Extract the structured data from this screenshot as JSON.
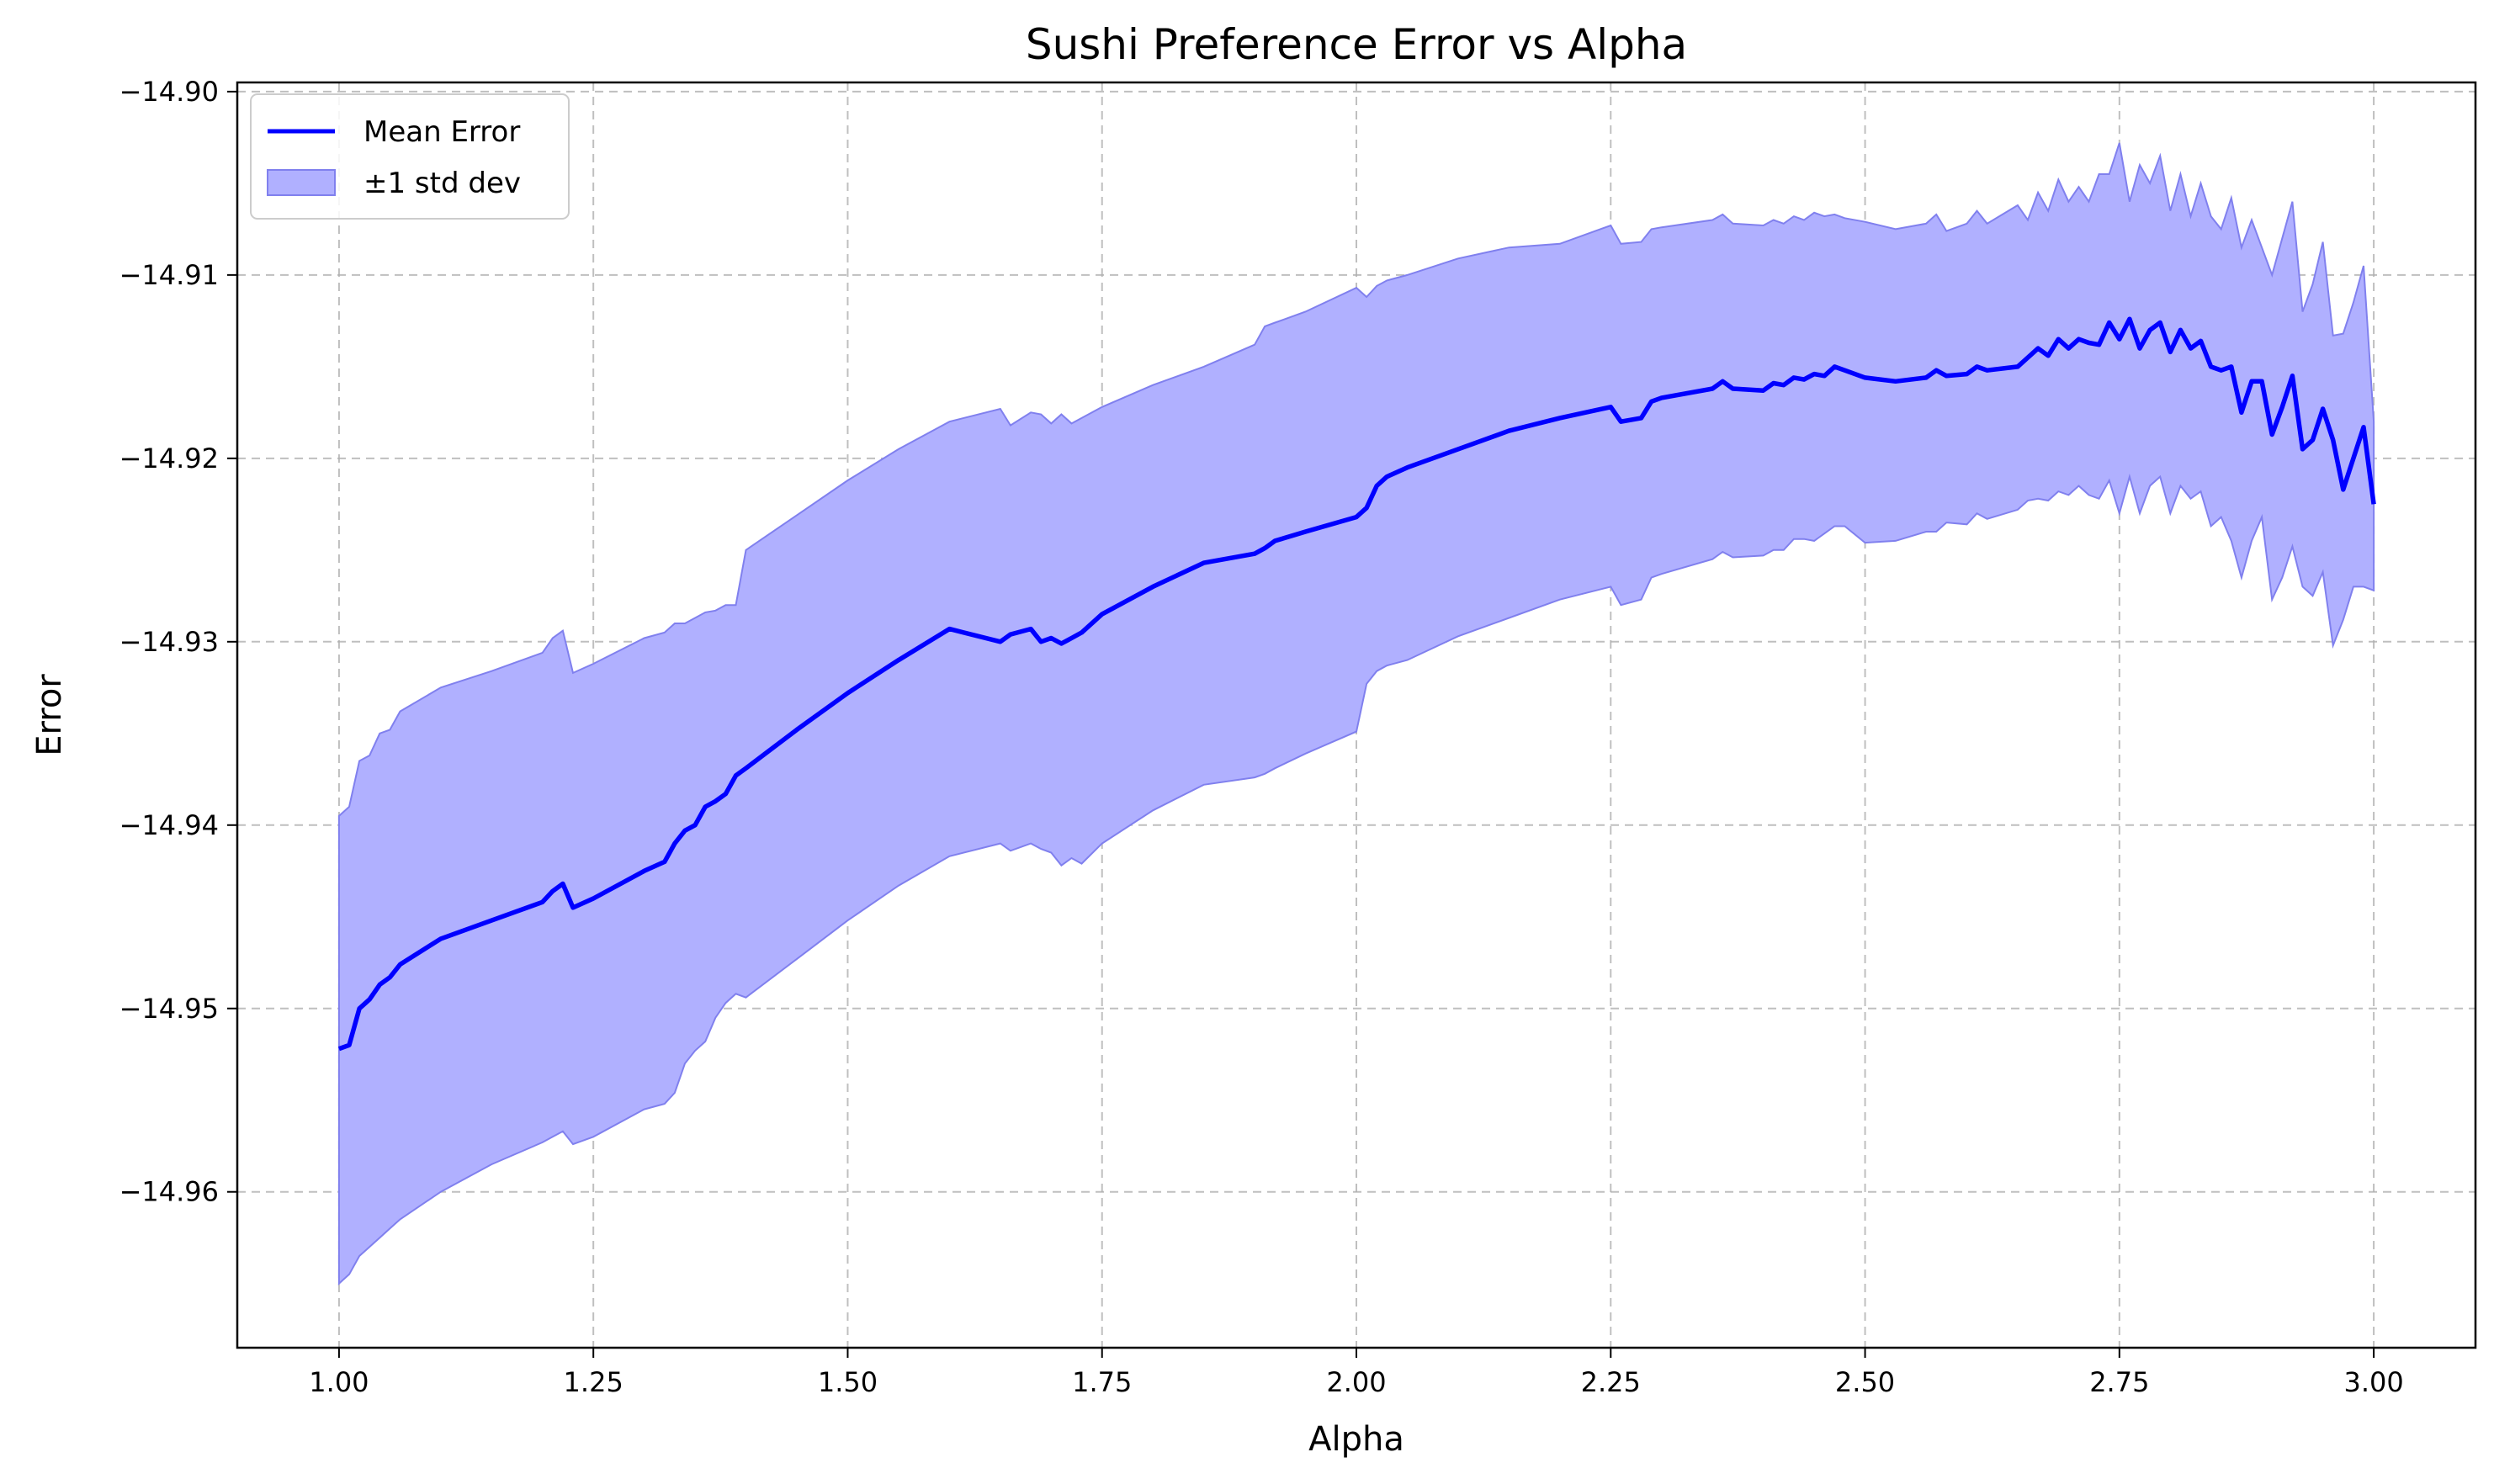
{
  "chart_data": {
    "type": "line",
    "title": "Sushi Preference Error vs Alpha",
    "xlabel": "Alpha",
    "ylabel": "Error",
    "xlim": [
      0.9,
      3.1
    ],
    "ylim": [
      -14.9685,
      -14.8995
    ],
    "xticks": [
      1.0,
      1.25,
      1.5,
      1.75,
      2.0,
      2.25,
      2.5,
      2.75,
      3.0
    ],
    "xtick_labels": [
      "1.00",
      "1.25",
      "1.50",
      "1.75",
      "2.00",
      "2.25",
      "2.50",
      "2.75",
      "3.00"
    ],
    "yticks": [
      -14.96,
      -14.95,
      -14.94,
      -14.93,
      -14.92,
      -14.91,
      -14.9
    ],
    "ytick_labels": [
      "−14.96",
      "−14.95",
      "−14.94",
      "−14.93",
      "−14.92",
      "−14.91",
      "−14.90"
    ],
    "grid": true,
    "legend_position": "top-left",
    "colors": {
      "line": "#0000ff",
      "band_fill": "#b0b0ff",
      "band_edge": "#8080ee"
    },
    "series": [
      {
        "name": "Mean Error",
        "kind": "line"
      },
      {
        "name": "±1 std dev",
        "kind": "band"
      }
    ],
    "x": [
      1.0,
      1.01,
      1.02,
      1.03,
      1.04,
      1.05,
      1.06,
      1.1,
      1.15,
      1.2,
      1.21,
      1.22,
      1.23,
      1.25,
      1.3,
      1.32,
      1.33,
      1.34,
      1.35,
      1.36,
      1.37,
      1.38,
      1.39,
      1.4,
      1.45,
      1.5,
      1.55,
      1.6,
      1.65,
      1.66,
      1.68,
      1.69,
      1.7,
      1.71,
      1.72,
      1.73,
      1.75,
      1.8,
      1.85,
      1.9,
      1.91,
      1.92,
      1.95,
      2.0,
      2.01,
      2.02,
      2.03,
      2.05,
      2.1,
      2.15,
      2.2,
      2.25,
      2.26,
      2.28,
      2.29,
      2.3,
      2.35,
      2.36,
      2.37,
      2.4,
      2.41,
      2.42,
      2.43,
      2.44,
      2.45,
      2.46,
      2.47,
      2.48,
      2.5,
      2.53,
      2.56,
      2.57,
      2.58,
      2.6,
      2.61,
      2.62,
      2.65,
      2.66,
      2.67,
      2.68,
      2.69,
      2.7,
      2.71,
      2.72,
      2.73,
      2.74,
      2.75,
      2.76,
      2.77,
      2.78,
      2.79,
      2.8,
      2.81,
      2.82,
      2.83,
      2.84,
      2.85,
      2.86,
      2.87,
      2.88,
      2.89,
      2.9,
      2.91,
      2.92,
      2.93,
      2.94,
      2.95,
      2.96,
      2.97,
      2.98,
      2.99,
      3.0
    ],
    "mean": [
      -14.9522,
      -14.952,
      -14.95,
      -14.9495,
      -14.9487,
      -14.9483,
      -14.9476,
      -14.9462,
      -14.9452,
      -14.9442,
      -14.9436,
      -14.9432,
      -14.9445,
      -14.944,
      -14.9425,
      -14.942,
      -14.941,
      -14.9403,
      -14.94,
      -14.939,
      -14.9387,
      -14.9383,
      -14.9373,
      -14.9369,
      -14.9348,
      -14.9328,
      -14.931,
      -14.9293,
      -14.93,
      -14.9296,
      -14.9293,
      -14.93,
      -14.9298,
      -14.9301,
      -14.9298,
      -14.9295,
      -14.9285,
      -14.927,
      -14.9257,
      -14.9252,
      -14.9249,
      -14.9245,
      -14.924,
      -14.9232,
      -14.9227,
      -14.9215,
      -14.921,
      -14.9205,
      -14.9195,
      -14.9185,
      -14.9178,
      -14.9172,
      -14.918,
      -14.9178,
      -14.9169,
      -14.9167,
      -14.9162,
      -14.9158,
      -14.9162,
      -14.9163,
      -14.9159,
      -14.916,
      -14.9156,
      -14.9157,
      -14.9154,
      -14.9155,
      -14.915,
      -14.9152,
      -14.9156,
      -14.9158,
      -14.9156,
      -14.9152,
      -14.9155,
      -14.9154,
      -14.915,
      -14.9152,
      -14.915,
      -14.9145,
      -14.914,
      -14.9144,
      -14.9135,
      -14.914,
      -14.9135,
      -14.9137,
      -14.9138,
      -14.9126,
      -14.9135,
      -14.9124,
      -14.914,
      -14.913,
      -14.9126,
      -14.9142,
      -14.913,
      -14.914,
      -14.9136,
      -14.915,
      -14.9152,
      -14.915,
      -14.9175,
      -14.9158,
      -14.9158,
      -14.9187,
      -14.9172,
      -14.9155,
      -14.9195,
      -14.919,
      -14.9173,
      -14.919,
      -14.9217,
      -14.92,
      -14.9183,
      -14.9225
    ],
    "upper": [
      -14.9395,
      -14.939,
      -14.9365,
      -14.9362,
      -14.935,
      -14.9348,
      -14.9338,
      -14.9325,
      -14.9316,
      -14.9306,
      -14.9298,
      -14.9294,
      -14.9317,
      -14.9312,
      -14.9298,
      -14.9295,
      -14.929,
      -14.929,
      -14.9287,
      -14.9284,
      -14.9283,
      -14.928,
      -14.928,
      -14.925,
      -14.9231,
      -14.9212,
      -14.9195,
      -14.918,
      -14.9173,
      -14.9182,
      -14.9175,
      -14.9176,
      -14.9181,
      -14.9176,
      -14.9181,
      -14.9178,
      -14.9172,
      -14.916,
      -14.915,
      -14.9138,
      -14.9128,
      -14.9126,
      -14.912,
      -14.9107,
      -14.9112,
      -14.9106,
      -14.9103,
      -14.91,
      -14.9091,
      -14.9085,
      -14.9083,
      -14.9073,
      -14.9083,
      -14.9082,
      -14.9075,
      -14.9074,
      -14.907,
      -14.9067,
      -14.9072,
      -14.9073,
      -14.907,
      -14.9072,
      -14.9068,
      -14.907,
      -14.9066,
      -14.9068,
      -14.9067,
      -14.9069,
      -14.9071,
      -14.9075,
      -14.9072,
      -14.9067,
      -14.9076,
      -14.9072,
      -14.9065,
      -14.9072,
      -14.9062,
      -14.907,
      -14.9055,
      -14.9065,
      -14.9048,
      -14.906,
      -14.9052,
      -14.906,
      -14.9045,
      -14.9045,
      -14.9028,
      -14.906,
      -14.904,
      -14.905,
      -14.9035,
      -14.9065,
      -14.9045,
      -14.9068,
      -14.905,
      -14.9068,
      -14.9075,
      -14.9058,
      -14.9085,
      -14.907,
      -14.9085,
      -14.91,
      -14.908,
      -14.906,
      -14.912,
      -14.9105,
      -14.9082,
      -14.9133,
      -14.9132,
      -14.9115,
      -14.9095,
      -14.918
    ],
    "lower": [
      -14.965,
      -14.9645,
      -14.9635,
      -14.963,
      -14.9625,
      -14.962,
      -14.9615,
      -14.96,
      -14.9585,
      -14.9573,
      -14.957,
      -14.9567,
      -14.9574,
      -14.957,
      -14.9555,
      -14.9552,
      -14.9546,
      -14.953,
      -14.9523,
      -14.9518,
      -14.9505,
      -14.9497,
      -14.9492,
      -14.9494,
      -14.9473,
      -14.9452,
      -14.9433,
      -14.9417,
      -14.941,
      -14.9414,
      -14.941,
      -14.9413,
      -14.9415,
      -14.9422,
      -14.9418,
      -14.9421,
      -14.941,
      -14.9392,
      -14.9378,
      -14.9374,
      -14.9372,
      -14.9369,
      -14.9361,
      -14.9349,
      -14.9323,
      -14.9316,
      -14.9313,
      -14.931,
      -14.9297,
      -14.9287,
      -14.9277,
      -14.927,
      -14.928,
      -14.9277,
      -14.9265,
      -14.9263,
      -14.9255,
      -14.9251,
      -14.9254,
      -14.9253,
      -14.925,
      -14.925,
      -14.9244,
      -14.9244,
      -14.9245,
      -14.9241,
      -14.9237,
      -14.9237,
      -14.9246,
      -14.9245,
      -14.924,
      -14.924,
      -14.9235,
      -14.9236,
      -14.923,
      -14.9233,
      -14.9228,
      -14.9223,
      -14.9222,
      -14.9223,
      -14.9218,
      -14.922,
      -14.9215,
      -14.922,
      -14.9222,
      -14.9212,
      -14.923,
      -14.921,
      -14.923,
      -14.9215,
      -14.921,
      -14.923,
      -14.9215,
      -14.9222,
      -14.9218,
      -14.9237,
      -14.9232,
      -14.9245,
      -14.9265,
      -14.9245,
      -14.9232,
      -14.9277,
      -14.9265,
      -14.9248,
      -14.927,
      -14.9275,
      -14.9262,
      -14.9302,
      -14.9288,
      -14.927,
      -14.927,
      -14.9272
    ]
  }
}
